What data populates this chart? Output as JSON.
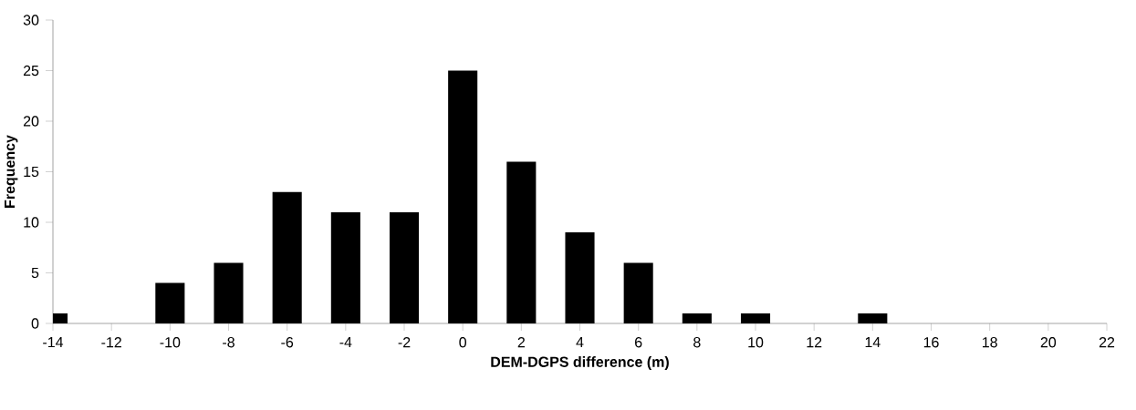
{
  "chart_data": {
    "type": "bar",
    "xlabel": "DEM-DGPS difference (m)",
    "ylabel": "Frequency",
    "categories": [
      "-14",
      "-12",
      "-10",
      "-8",
      "-6",
      "-4",
      "-2",
      "0",
      "2",
      "4",
      "6",
      "8",
      "10",
      "12",
      "14",
      "16",
      "18",
      "20",
      "22"
    ],
    "values": [
      1,
      0,
      4,
      6,
      13,
      11,
      11,
      25,
      16,
      9,
      6,
      1,
      1,
      0,
      1,
      0,
      0,
      0,
      0
    ],
    "color": "#000000",
    "ylim": [
      0,
      30
    ],
    "yticks": [
      0,
      5,
      10,
      15,
      20,
      25,
      30
    ],
    "grid": false
  }
}
